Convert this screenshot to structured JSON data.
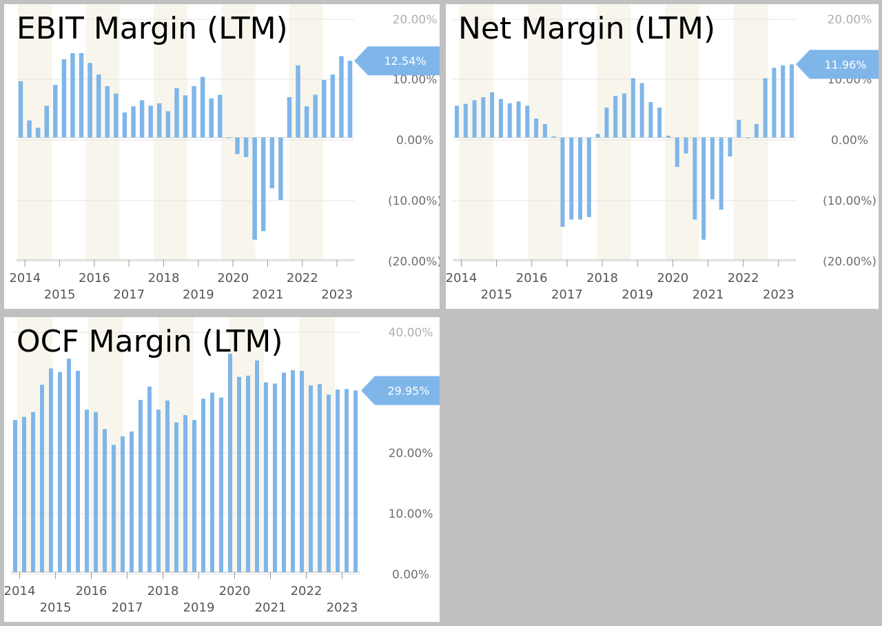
{
  "chart_data": [
    {
      "type": "bar",
      "title": "EBIT Margin (LTM)",
      "x_labels_row1": [
        "2014",
        "2016",
        "2018",
        "2020",
        "2022"
      ],
      "x_labels_row2": [
        "2015",
        "2017",
        "2019",
        "2021",
        "2023"
      ],
      "y_ticks": [
        "20.00%",
        "10.00%",
        "0.00%",
        "(10.00%)",
        "(20.00%)"
      ],
      "ylim": [
        -20,
        20
      ],
      "last_value_label": "12.54%",
      "grid": true,
      "colors": {
        "bar": "#7fb6ea",
        "band": "#f8f6ec",
        "flag": "#7fb6ea",
        "grid": "#e3e3e3"
      },
      "values": [
        9.2,
        2.8,
        1.6,
        5.2,
        8.6,
        12.8,
        13.8,
        13.8,
        12.2,
        10.3,
        8.4,
        7.2,
        4.1,
        5.1,
        6.1,
        5.2,
        5.6,
        4.3,
        8.1,
        6.9,
        8.4,
        9.9,
        6.4,
        7.0,
        0.0,
        -2.7,
        -3.2,
        -16.7,
        -15.3,
        -8.3,
        -10.2,
        6.6,
        11.8,
        5.1,
        7.0,
        9.4,
        10.3,
        13.3,
        12.54
      ],
      "x_start": "2013.875",
      "x_step": 0.25
    },
    {
      "type": "bar",
      "title": "Net Margin (LTM)",
      "x_labels_row1": [
        "2014",
        "2016",
        "2018",
        "2020",
        "2022"
      ],
      "x_labels_row2": [
        "2015",
        "2017",
        "2019",
        "2021",
        "2023"
      ],
      "y_ticks": [
        "20.00%",
        "10.00%",
        "0.00%",
        "(10.00%)",
        "(20.00%)"
      ],
      "ylim": [
        -20,
        20
      ],
      "last_value_label": "11.96%",
      "grid": true,
      "colors": {
        "bar": "#7fb6ea",
        "band": "#f8f6ec",
        "flag": "#7fb6ea",
        "grid": "#e3e3e3"
      },
      "values": [
        5.2,
        5.5,
        6.1,
        6.6,
        7.4,
        6.3,
        5.6,
        5.9,
        5.2,
        3.1,
        2.2,
        0.2,
        -14.6,
        -13.4,
        -13.4,
        -13.0,
        0.6,
        4.9,
        6.8,
        7.2,
        9.7,
        8.9,
        5.8,
        4.9,
        0.3,
        -4.8,
        -2.6,
        -13.4,
        -16.7,
        -10.1,
        -11.8,
        -3.1,
        2.9,
        0.0,
        2.2,
        9.7,
        11.4,
        11.8,
        11.96
      ],
      "x_start": "2013.875",
      "x_step": 0.25
    },
    {
      "type": "bar",
      "title": "OCF Margin (LTM)",
      "x_labels_row1": [
        "2014",
        "2016",
        "2018",
        "2020",
        "2022"
      ],
      "x_labels_row2": [
        "2015",
        "2017",
        "2019",
        "2021",
        "2023"
      ],
      "y_ticks": [
        "40.00%",
        "20.00%",
        "10.00%",
        "0.00%"
      ],
      "y_tick_values": [
        40,
        20,
        10,
        0
      ],
      "ylim": [
        0,
        40
      ],
      "last_value_label": "29.95%",
      "grid": true,
      "colors": {
        "bar": "#7fb6ea",
        "band": "#f8f6ec",
        "flag": "#7fb6ea",
        "grid": "#e3e3e3"
      },
      "values": [
        25.1,
        25.6,
        26.4,
        30.9,
        33.6,
        33.0,
        35.2,
        33.2,
        26.8,
        26.4,
        23.6,
        21.0,
        22.4,
        23.2,
        28.4,
        30.6,
        26.8,
        28.3,
        24.7,
        25.9,
        25.1,
        28.6,
        29.6,
        28.8,
        36.0,
        32.2,
        32.4,
        34.9,
        31.3,
        31.1,
        32.9,
        33.3,
        33.2,
        30.8,
        31.0,
        29.3,
        30.1,
        30.2,
        29.95
      ],
      "x_start": "2013.875",
      "x_step": 0.25
    }
  ]
}
